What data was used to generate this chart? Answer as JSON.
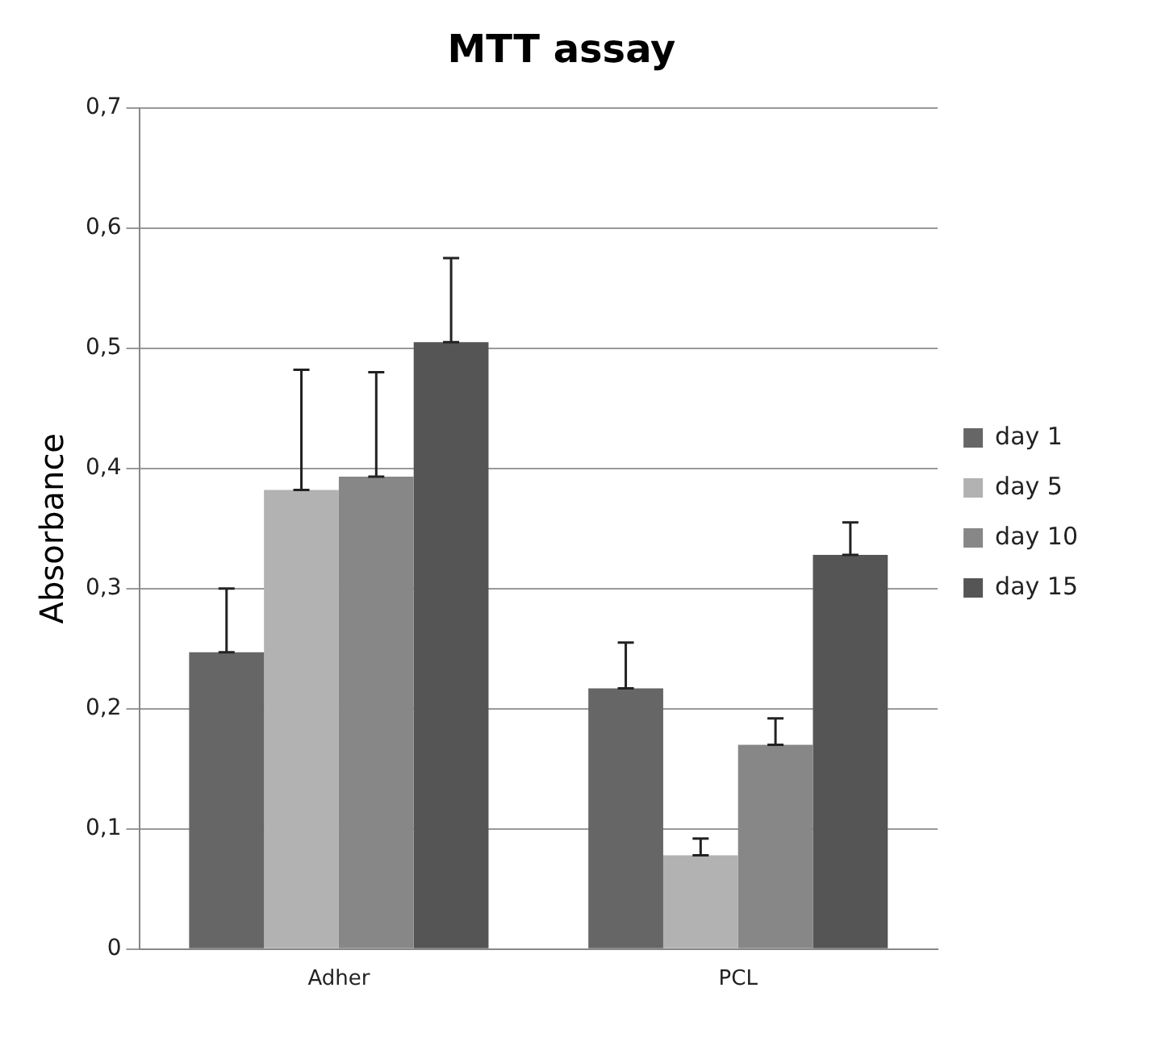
{
  "chart_data": {
    "type": "bar",
    "title": "MTT assay",
    "ylabel": "Absorbance",
    "categories": [
      "Adher",
      "PCL"
    ],
    "series": [
      {
        "name": "day 1",
        "color": "#666666",
        "values": [
          0.247,
          0.217
        ],
        "errors": [
          [
            0.247,
            0.3
          ],
          [
            0.217,
            0.255
          ]
        ]
      },
      {
        "name": "day 5",
        "color": "#b2b2b2",
        "values": [
          0.382,
          0.078
        ],
        "errors": [
          [
            0.382,
            0.482
          ],
          [
            0.078,
            0.092
          ]
        ]
      },
      {
        "name": "day 10",
        "color": "#878787",
        "values": [
          0.393,
          0.17
        ],
        "errors": [
          [
            0.393,
            0.48
          ],
          [
            0.17,
            0.192
          ]
        ]
      },
      {
        "name": "day 15",
        "color": "#555555",
        "values": [
          0.505,
          0.328
        ],
        "errors": [
          [
            0.505,
            0.575
          ],
          [
            0.328,
            0.355
          ]
        ]
      }
    ],
    "ylim": [
      0,
      0.7
    ],
    "yticks": [
      0,
      {
        "value": 0.1,
        "label": "0,1"
      },
      {
        "value": 0.2,
        "label": "0,2"
      },
      {
        "value": 0.3,
        "label": "0,3"
      },
      {
        "value": 0.4,
        "label": "0,4"
      },
      {
        "value": 0.5,
        "label": "0,5"
      },
      {
        "value": 0.6,
        "label": "0,6"
      },
      {
        "value": 0.7,
        "label": "0,7"
      }
    ],
    "grid": "y",
    "legend": "right"
  }
}
